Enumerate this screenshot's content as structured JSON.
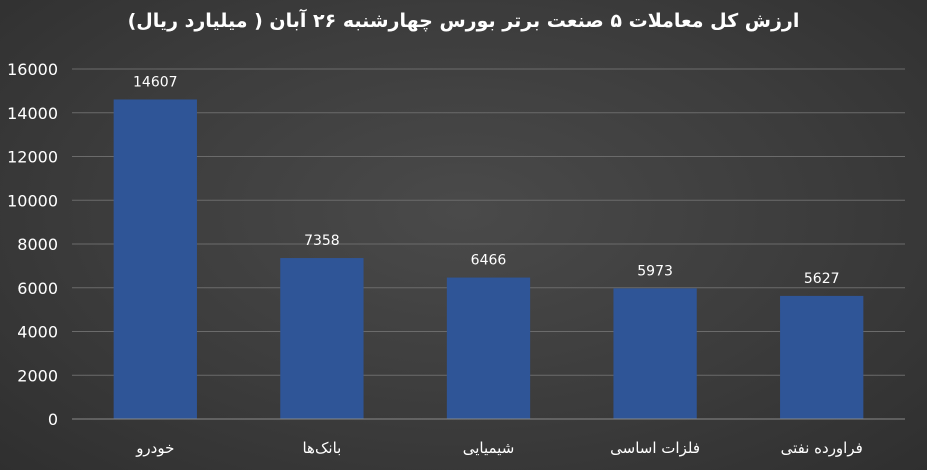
{
  "chart_data": {
    "type": "bar",
    "title": "ارزش کل معاملات ۵ صنعت برتر بورس چهارشنبه ۲۶ آبان ( میلیارد ریال)",
    "categories": [
      "خودرو",
      "بانک‌ها",
      "شیمیایی",
      "فلزات اساسی",
      "فراورده نفتی"
    ],
    "values": [
      14607,
      7358,
      6466,
      5973,
      5627
    ],
    "data_labels": [
      "14607",
      "7358",
      "6466",
      "5973",
      "5627"
    ],
    "ylim": [
      0,
      16000
    ],
    "yticks": [
      "0",
      "2000",
      "4000",
      "6000",
      "8000",
      "10000",
      "12000",
      "14000",
      "16000"
    ],
    "ytick_values": [
      0,
      2000,
      4000,
      6000,
      8000,
      10000,
      12000,
      14000,
      16000
    ],
    "grid": true,
    "legend": "none",
    "colors": {
      "bar": "#2f5597",
      "background": "#3f3f3f",
      "text": "#ffffff",
      "grid": "#6b6b6b"
    }
  }
}
